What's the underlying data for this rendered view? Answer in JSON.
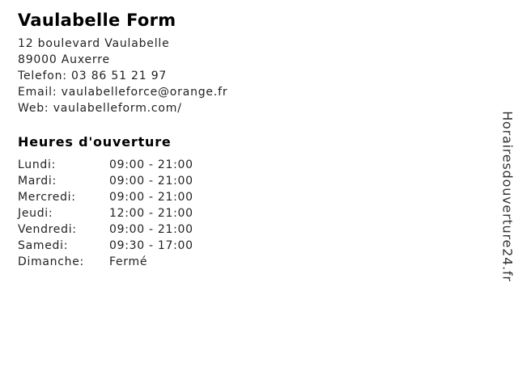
{
  "business": {
    "name": "Vaulabelle Form",
    "address": {
      "street": "12 boulevard Vaulabelle",
      "city": "89000 Auxerre"
    },
    "phone": {
      "label": "Telefon:",
      "value": "03 86 51 21 97"
    },
    "email": {
      "label": "Email:",
      "value": "vaulabelleforce@orange.fr"
    },
    "web": {
      "label": "Web:",
      "value": "vaulabelleform.com/"
    }
  },
  "hours": {
    "title": "Heures d'ouverture",
    "rows": [
      {
        "day": "Lundi:",
        "time": "09:00 - 21:00"
      },
      {
        "day": "Mardi:",
        "time": "09:00 - 21:00"
      },
      {
        "day": "Mercredi:",
        "time": "09:00 - 21:00"
      },
      {
        "day": "Jeudi:",
        "time": "12:00 - 21:00"
      },
      {
        "day": "Vendredi:",
        "time": "09:00 - 21:00"
      },
      {
        "day": "Samedi:",
        "time": "09:30 - 17:00"
      },
      {
        "day": "Dimanche:",
        "time": "Fermé"
      }
    ]
  },
  "watermark": {
    "text": "Horairesdouverture24.fr"
  },
  "colors": {
    "background": "#ffffff",
    "heading": "#000000",
    "body_text": "#222222",
    "watermark_text": "#333333"
  }
}
